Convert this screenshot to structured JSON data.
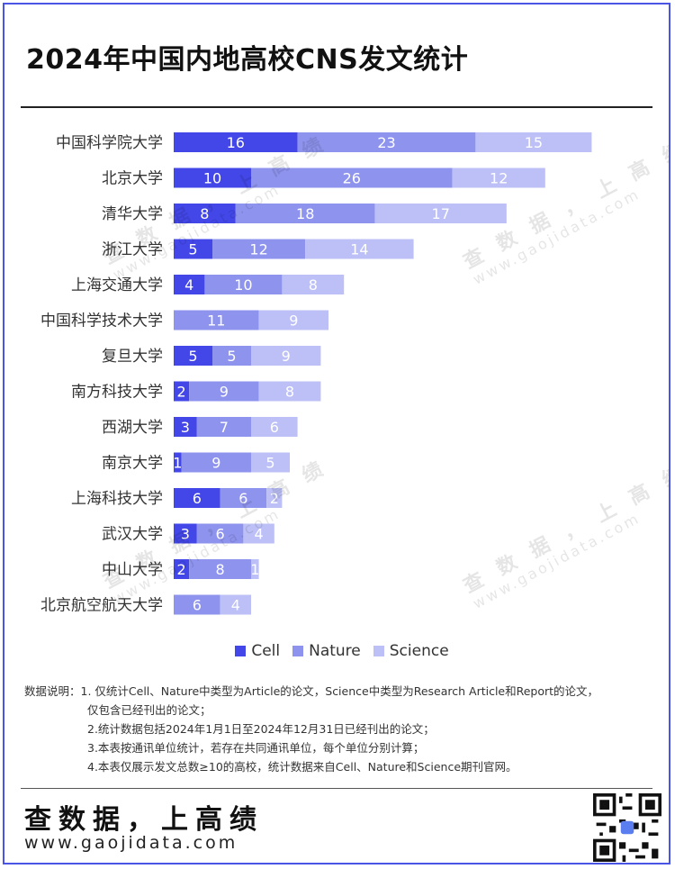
{
  "title": "2024年中国内地高校CNS发文统计",
  "colors": {
    "cell": "#4347e8",
    "nature": "#8e93ee",
    "science": "#bcc0f6"
  },
  "chart_data": {
    "type": "bar",
    "orientation": "horizontal",
    "stacked": true,
    "categories": [
      "中国科学院大学",
      "北京大学",
      "清华大学",
      "浙江大学",
      "上海交通大学",
      "中国科学技术大学",
      "复旦大学",
      "南方科技大学",
      "西湖大学",
      "南京大学",
      "上海科技大学",
      "武汉大学",
      "中山大学",
      "北京航空航天大学"
    ],
    "series": [
      {
        "name": "Cell",
        "values": [
          16,
          10,
          8,
          5,
          4,
          0,
          5,
          2,
          3,
          1,
          6,
          3,
          2,
          0
        ]
      },
      {
        "name": "Nature",
        "values": [
          23,
          26,
          18,
          12,
          10,
          11,
          5,
          9,
          7,
          9,
          6,
          6,
          8,
          6
        ]
      },
      {
        "name": "Science",
        "values": [
          15,
          12,
          17,
          14,
          8,
          9,
          9,
          8,
          6,
          5,
          2,
          4,
          1,
          4
        ]
      }
    ],
    "legend_position": "bottom",
    "grid": false
  },
  "legend": [
    "Cell",
    "Nature",
    "Science"
  ],
  "watermark": {
    "text": "查 数 据 ， 上 高 绩",
    "url": "www.gaojidata.com"
  },
  "notes": {
    "line1": "数据说明：1. 仅统计Cell、Nature中类型为Article的论文，Science中类型为Research Article和Report的论文，",
    "line1b": "仅包含已经刊出的论文；",
    "line2": "2.统计数据包括2024年1月1日至2024年12月31日已经刊出的论文；",
    "line3": "3.本表按通讯单位统计，若存在共同通讯单位，每个单位分别计算；",
    "line4": "4.本表仅展示发文总数≥10的高校，统计数据来自Cell、Nature和Science期刊官网。"
  },
  "footer": {
    "brand": "查数据，上高绩",
    "url": "www.gaojidata.com"
  }
}
